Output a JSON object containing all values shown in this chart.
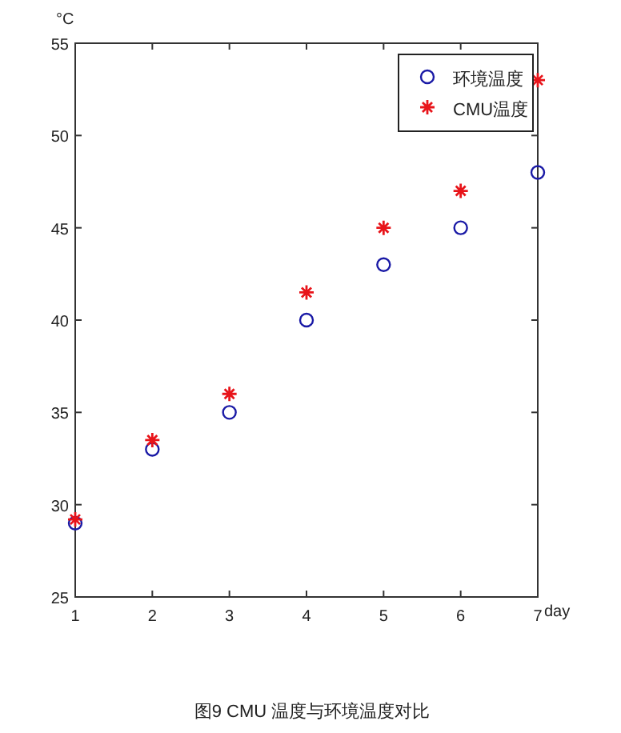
{
  "chart_data": {
    "type": "scatter",
    "xlabel": "day",
    "ylabel": "°C",
    "x": [
      1,
      2,
      3,
      4,
      5,
      6,
      7
    ],
    "series": [
      {
        "name": "环境温度",
        "color": "#1a1aa6",
        "marker": "circle",
        "values": [
          29,
          33,
          35,
          40,
          43,
          45,
          48
        ]
      },
      {
        "name": "CMU温度",
        "color": "#e8141a",
        "marker": "cross",
        "values": [
          29.2,
          33.5,
          36,
          41.5,
          45,
          47,
          53
        ]
      }
    ],
    "xlim": [
      1,
      7
    ],
    "xticks": [
      1,
      2,
      3,
      4,
      5,
      6,
      7
    ],
    "ylim": [
      25,
      55
    ],
    "yticks": [
      25,
      30,
      35,
      40,
      45,
      50,
      55
    ],
    "grid": false,
    "legend": "top right",
    "annotations": [
      "图9 CMU 温度与环境温度对比"
    ]
  }
}
